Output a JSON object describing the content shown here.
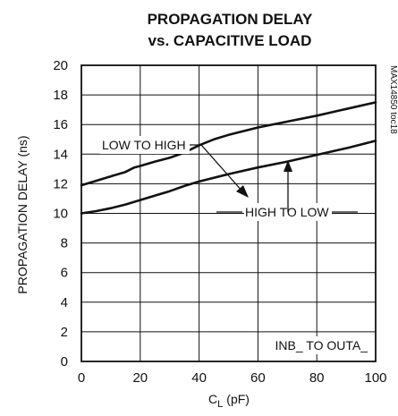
{
  "chart_data": {
    "type": "line",
    "title_line1": "PROPAGATION DELAY",
    "title_line2": "vs. CAPACITIVE LOAD",
    "xlabel_main": "C",
    "xlabel_sub": "L",
    "xlabel_unit": "(pF)",
    "ylabel": "PROPAGATION DELAY (ns)",
    "xlim": [
      0,
      100
    ],
    "ylim": [
      0,
      20
    ],
    "x_ticks": [
      "0",
      "20",
      "40",
      "60",
      "80",
      "100"
    ],
    "y_ticks": [
      "0",
      "2",
      "4",
      "6",
      "8",
      "10",
      "12",
      "14",
      "16",
      "18",
      "20"
    ],
    "grid": true,
    "series": [
      {
        "name": "LOW TO HIGH",
        "x": [
          0,
          5,
          10,
          15,
          18,
          20,
          25,
          30,
          35,
          40,
          45,
          50,
          60,
          70,
          80,
          90,
          100
        ],
        "values": [
          11.9,
          12.2,
          12.5,
          12.8,
          13.1,
          13.2,
          13.5,
          13.75,
          14.1,
          14.6,
          15.0,
          15.3,
          15.8,
          16.2,
          16.6,
          17.05,
          17.5
        ]
      },
      {
        "name": "HIGH TO LOW",
        "x": [
          0,
          5,
          10,
          15,
          20,
          25,
          30,
          35,
          40,
          50,
          60,
          70,
          80,
          90,
          100
        ],
        "values": [
          10.0,
          10.15,
          10.35,
          10.6,
          10.9,
          11.2,
          11.5,
          11.85,
          12.15,
          12.65,
          13.1,
          13.5,
          13.95,
          14.4,
          14.9
        ]
      }
    ],
    "annotations": {
      "low_to_high": "LOW TO HIGH",
      "high_to_low": "HIGH TO LOW",
      "condition": "INB_ TO OUTA_",
      "code": "MAX14850 toc18"
    }
  }
}
